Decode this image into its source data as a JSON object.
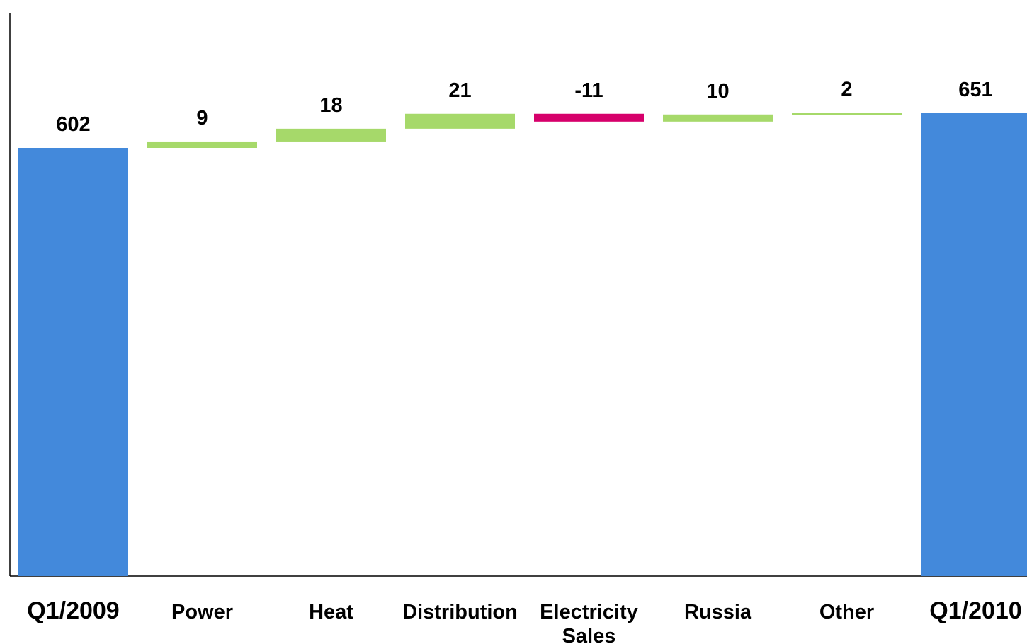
{
  "chart_data": {
    "type": "bar",
    "subtype": "waterfall",
    "title": "",
    "xlabel": "",
    "ylabel": "",
    "ylim": [
      0,
      651
    ],
    "grid": false,
    "legend": "none",
    "categories": [
      {
        "label": [
          "Q1/2009"
        ],
        "kind": "total",
        "value": 602,
        "display": "602"
      },
      {
        "label": [
          "Power"
        ],
        "kind": "delta",
        "value": 9,
        "display": "9"
      },
      {
        "label": [
          "Heat"
        ],
        "kind": "delta",
        "value": 18,
        "display": "18"
      },
      {
        "label": [
          "Distribution"
        ],
        "kind": "delta",
        "value": 21,
        "display": "21"
      },
      {
        "label": [
          "Electricity",
          "Sales"
        ],
        "kind": "delta",
        "value": -11,
        "display": "-11"
      },
      {
        "label": [
          "Russia"
        ],
        "kind": "delta",
        "value": 10,
        "display": "10"
      },
      {
        "label": [
          "Other"
        ],
        "kind": "delta",
        "value": 2,
        "display": "2"
      },
      {
        "label": [
          "Q1/2010"
        ],
        "kind": "total",
        "value": 651,
        "display": "651"
      }
    ],
    "colors": {
      "total": "#4389DB",
      "increase": "#A6D96A",
      "decrease": "#D6006B",
      "axis": "#000000"
    }
  }
}
